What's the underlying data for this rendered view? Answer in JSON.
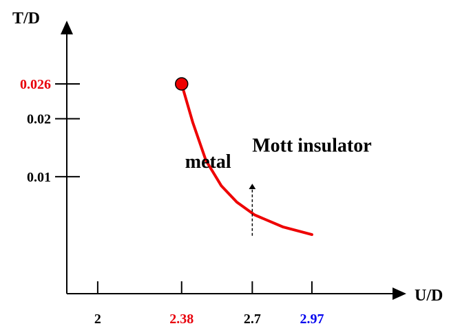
{
  "chart_data": {
    "type": "line",
    "title": "",
    "xlabel": "U/D",
    "ylabel": "T/D",
    "xlim": [
      1.86,
      3.36
    ],
    "ylim": [
      -0.0102,
      0.0355
    ],
    "x_ticks": [
      {
        "value": 2,
        "label": "2",
        "color": "#000000"
      },
      {
        "value": 2.38,
        "label": "2.38",
        "color": "#e8000b"
      },
      {
        "value": 2.7,
        "label": "2.7",
        "color": "#000000"
      },
      {
        "value": 2.97,
        "label": "2.97",
        "color": "#0000ee"
      }
    ],
    "y_ticks": [
      {
        "value": 0.01,
        "label": "0.01",
        "color": "#000000"
      },
      {
        "value": 0.02,
        "label": "0.02",
        "color": "#000000"
      },
      {
        "value": 0.026,
        "label": "0.026",
        "color": "#e8000b"
      }
    ],
    "series": [
      {
        "color": "#ee0000",
        "points": [
          [
            2.38,
            0.026
          ],
          [
            2.43,
            0.0194
          ],
          [
            2.49,
            0.0128
          ],
          [
            2.56,
            0.0084
          ],
          [
            2.63,
            0.0056
          ],
          [
            2.71,
            0.0034
          ],
          [
            2.84,
            0.0013
          ],
          [
            2.97,
            0.0
          ]
        ]
      }
    ],
    "endpoint_marker": {
      "x": 2.38,
      "y": 0.026,
      "color": "#ee0000"
    },
    "arrow_marker": {
      "x": 2.7,
      "y_from": -0.0002,
      "y_to": 0.0083
    },
    "annotations": [
      {
        "text": "metal",
        "x": 2.5,
        "y": 0.0115
      },
      {
        "text": "Mott insulator",
        "x": 2.97,
        "y": 0.0143
      }
    ]
  }
}
